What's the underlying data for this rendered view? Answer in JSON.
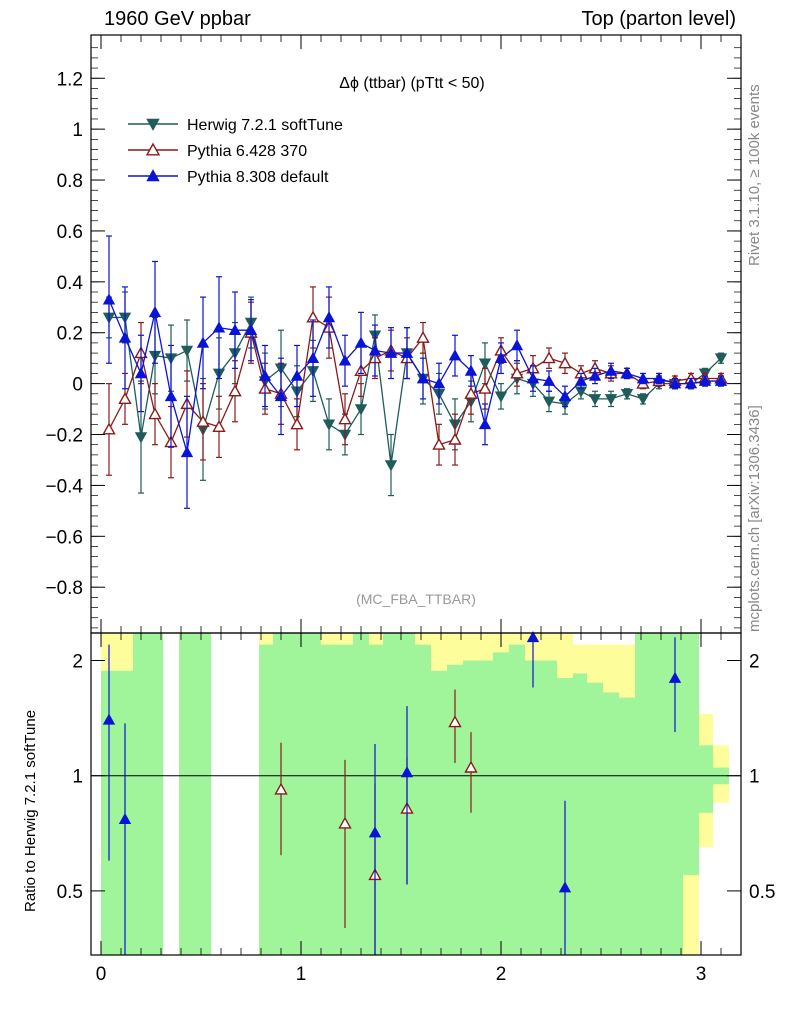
{
  "header": {
    "left": "1960 GeV ppbar",
    "right": "Top (parton level)"
  },
  "side_labels": {
    "rivet": "Rivet 3.1.10, ≥ 100k events",
    "mcplots": "mcplots.cern.ch [arXiv:1306.3436]"
  },
  "colors": {
    "herwig": "#1f5c5c",
    "pythia6": "#8b1a1a",
    "pythia8": "#0a14d6",
    "band_inner": "#a0f59a",
    "band_outer": "#fdfd9c"
  },
  "chart_data": [
    {
      "type": "line",
      "title": "Δϕ (ttbar) (pTtt < 50)",
      "footer": "(MC_FBA_TTBAR)",
      "xlim": [
        -0.05,
        3.2
      ],
      "ylim": [
        -0.98,
        1.37
      ],
      "x_ticks": [
        0,
        1,
        2,
        3
      ],
      "y_ticks": [
        -0.8,
        -0.6,
        -0.4,
        -0.2,
        0,
        0.2,
        0.4,
        0.6,
        0.8,
        1,
        1.2
      ],
      "y_tick_labels": [
        "−0.8",
        "−0.6",
        "−0.4",
        "−0.2",
        "0",
        "0.2",
        "0.4",
        "0.6",
        "0.8",
        "1",
        "1.2"
      ],
      "legend_position": "top-left",
      "series": [
        {
          "name": "Herwig 7.2.1 softTune",
          "marker": "triangle-down-filled",
          "color": "#1f5c5c",
          "x": [
            0.04,
            0.12,
            0.2,
            0.27,
            0.35,
            0.43,
            0.51,
            0.59,
            0.67,
            0.75,
            0.82,
            0.9,
            0.98,
            1.06,
            1.14,
            1.22,
            1.3,
            1.37,
            1.45,
            1.53,
            1.61,
            1.69,
            1.77,
            1.85,
            1.92,
            2.0,
            2.08,
            2.16,
            2.24,
            2.32,
            2.4,
            2.47,
            2.55,
            2.63,
            2.71,
            2.79,
            2.87,
            2.95,
            3.02,
            3.1
          ],
          "y": [
            0.26,
            0.26,
            -0.21,
            0.11,
            0.1,
            0.13,
            -0.18,
            0.04,
            0.12,
            0.24,
            0.01,
            0.06,
            -0.03,
            0.05,
            -0.16,
            -0.2,
            -0.1,
            0.19,
            -0.32,
            0.12,
            0.02,
            -0.04,
            -0.16,
            -0.07,
            0.08,
            -0.05,
            0.02,
            0.0,
            -0.07,
            -0.08,
            -0.03,
            -0.06,
            -0.06,
            -0.04,
            -0.06,
            0.0,
            0.0,
            0.0,
            0.04,
            0.1
          ],
          "err": [
            0.08,
            0.1,
            0.22,
            0.15,
            0.13,
            0.12,
            0.2,
            0.14,
            0.12,
            0.1,
            0.11,
            0.15,
            0.1,
            0.12,
            0.1,
            0.08,
            0.1,
            0.08,
            0.12,
            0.1,
            0.1,
            0.08,
            0.1,
            0.08,
            0.08,
            0.05,
            0.06,
            0.05,
            0.04,
            0.04,
            0.03,
            0.03,
            0.03,
            0.02,
            0.02,
            0.02,
            0.02,
            0.02,
            0.02,
            0.02
          ]
        },
        {
          "name": "Pythia 6.428 370",
          "marker": "triangle-up-open",
          "color": "#8b1a1a",
          "x": [
            0.04,
            0.12,
            0.2,
            0.27,
            0.35,
            0.43,
            0.51,
            0.59,
            0.67,
            0.75,
            0.82,
            0.9,
            0.98,
            1.06,
            1.14,
            1.22,
            1.3,
            1.37,
            1.45,
            1.53,
            1.61,
            1.69,
            1.77,
            1.85,
            1.92,
            2.0,
            2.08,
            2.16,
            2.24,
            2.32,
            2.4,
            2.47,
            2.55,
            2.63,
            2.71,
            2.79,
            2.87,
            2.95,
            3.02,
            3.1
          ],
          "y": [
            -0.18,
            -0.06,
            0.12,
            -0.12,
            -0.23,
            -0.08,
            -0.15,
            -0.17,
            -0.03,
            0.2,
            -0.02,
            -0.04,
            -0.16,
            0.26,
            0.22,
            -0.14,
            0.05,
            0.1,
            0.13,
            0.1,
            0.18,
            -0.24,
            -0.22,
            -0.04,
            -0.02,
            0.13,
            0.04,
            0.06,
            0.1,
            0.08,
            0.04,
            0.06,
            0.04,
            0.04,
            0.0,
            0.01,
            0.01,
            0.02,
            0.02,
            0.02
          ],
          "err": [
            0.18,
            0.1,
            0.12,
            0.12,
            0.14,
            0.13,
            0.15,
            0.12,
            0.12,
            0.12,
            0.1,
            0.12,
            0.1,
            0.12,
            0.12,
            0.1,
            0.1,
            0.08,
            0.08,
            0.08,
            0.06,
            0.08,
            0.1,
            0.08,
            0.08,
            0.05,
            0.05,
            0.05,
            0.04,
            0.04,
            0.03,
            0.03,
            0.03,
            0.02,
            0.02,
            0.02,
            0.02,
            0.02,
            0.02,
            0.02
          ]
        },
        {
          "name": "Pythia 8.308 default",
          "marker": "triangle-up-filled",
          "color": "#0a14d6",
          "x": [
            0.04,
            0.12,
            0.2,
            0.27,
            0.35,
            0.43,
            0.51,
            0.59,
            0.67,
            0.75,
            0.82,
            0.9,
            0.98,
            1.06,
            1.14,
            1.22,
            1.3,
            1.37,
            1.45,
            1.53,
            1.61,
            1.69,
            1.77,
            1.85,
            1.92,
            2.0,
            2.08,
            2.16,
            2.24,
            2.32,
            2.4,
            2.47,
            2.55,
            2.63,
            2.71,
            2.79,
            2.87,
            2.95,
            3.02,
            3.1
          ],
          "y": [
            0.33,
            0.18,
            0.04,
            0.28,
            -0.05,
            -0.27,
            0.16,
            0.22,
            0.21,
            0.21,
            0.03,
            -0.05,
            0.03,
            0.1,
            0.26,
            0.09,
            0.16,
            0.13,
            0.12,
            0.12,
            0.02,
            0.0,
            0.11,
            0.05,
            -0.16,
            0.1,
            0.15,
            0.02,
            0.01,
            -0.05,
            0.01,
            0.03,
            0.05,
            0.04,
            0.02,
            0.02,
            0.0,
            0.0,
            0.01,
            0.01
          ],
          "err": [
            0.25,
            0.2,
            0.15,
            0.2,
            0.2,
            0.22,
            0.18,
            0.2,
            0.15,
            0.12,
            0.12,
            0.15,
            0.12,
            0.15,
            0.12,
            0.1,
            0.12,
            0.1,
            0.1,
            0.1,
            0.08,
            0.08,
            0.08,
            0.06,
            0.08,
            0.06,
            0.06,
            0.05,
            0.04,
            0.04,
            0.03,
            0.03,
            0.03,
            0.02,
            0.02,
            0.02,
            0.02,
            0.02,
            0.02,
            0.02
          ]
        }
      ]
    },
    {
      "type": "line",
      "ylabel": "Ratio to Herwig 7.2.1 softTune",
      "xlim": [
        -0.05,
        3.2
      ],
      "ylim": [
        0.34,
        2.36
      ],
      "x_ticks": [
        0,
        1,
        2,
        3
      ],
      "y_ticks": [
        0.5,
        1,
        2
      ],
      "y_tick_labels": [
        "0.5",
        "1",
        "2"
      ],
      "reference_line": 1,
      "band": {
        "x_edges": [
          0.0,
          0.08,
          0.16,
          0.24,
          0.31,
          0.39,
          0.47,
          0.55,
          0.63,
          0.71,
          0.79,
          0.86,
          0.94,
          1.02,
          1.1,
          1.18,
          1.26,
          1.34,
          1.41,
          1.49,
          1.57,
          1.65,
          1.73,
          1.81,
          1.88,
          1.96,
          2.04,
          2.12,
          2.2,
          2.28,
          2.36,
          2.43,
          2.51,
          2.59,
          2.67,
          2.75,
          2.83,
          2.91,
          2.99,
          3.06,
          3.14
        ],
        "inner": [
          [
            0.34,
            1.88
          ],
          [
            0.34,
            1.88
          ],
          [
            0.34,
            2.36
          ],
          [
            0.34,
            2.36
          ],
          [
            1.0,
            1.0
          ],
          [
            0.34,
            2.36
          ],
          [
            0.34,
            2.36
          ],
          [
            1.0,
            1.0
          ],
          [
            1.0,
            1.0
          ],
          [
            1.0,
            1.0
          ],
          [
            0.34,
            2.2
          ],
          [
            0.34,
            2.36
          ],
          [
            0.34,
            2.36
          ],
          [
            0.34,
            2.36
          ],
          [
            0.34,
            2.2
          ],
          [
            0.34,
            2.2
          ],
          [
            0.34,
            2.36
          ],
          [
            0.34,
            2.2
          ],
          [
            0.34,
            2.36
          ],
          [
            0.34,
            2.36
          ],
          [
            0.34,
            2.2
          ],
          [
            0.34,
            1.88
          ],
          [
            0.34,
            1.95
          ],
          [
            0.34,
            2.0
          ],
          [
            0.34,
            2.0
          ],
          [
            0.34,
            2.1
          ],
          [
            0.34,
            2.2
          ],
          [
            0.34,
            2.0
          ],
          [
            0.34,
            2.0
          ],
          [
            0.34,
            1.8
          ],
          [
            0.34,
            1.85
          ],
          [
            0.34,
            1.75
          ],
          [
            0.34,
            1.65
          ],
          [
            0.34,
            1.6
          ],
          [
            0.34,
            2.36
          ],
          [
            0.34,
            2.36
          ],
          [
            0.34,
            2.36
          ],
          [
            0.55,
            2.36
          ],
          [
            0.8,
            1.2
          ],
          [
            0.95,
            1.05
          ]
        ],
        "outer": [
          [
            0.34,
            2.36
          ],
          [
            0.34,
            2.36
          ],
          [
            0.34,
            2.36
          ],
          [
            0.34,
            2.36
          ],
          [
            1.0,
            1.0
          ],
          [
            0.34,
            2.36
          ],
          [
            0.34,
            2.36
          ],
          [
            1.0,
            1.0
          ],
          [
            1.0,
            1.0
          ],
          [
            1.0,
            1.0
          ],
          [
            0.34,
            2.36
          ],
          [
            0.34,
            2.36
          ],
          [
            0.34,
            2.36
          ],
          [
            0.34,
            2.36
          ],
          [
            0.34,
            2.36
          ],
          [
            0.34,
            2.36
          ],
          [
            0.34,
            2.36
          ],
          [
            0.34,
            2.36
          ],
          [
            0.34,
            2.36
          ],
          [
            0.34,
            2.36
          ],
          [
            0.34,
            2.36
          ],
          [
            0.34,
            2.36
          ],
          [
            0.34,
            2.36
          ],
          [
            0.34,
            2.36
          ],
          [
            0.34,
            2.36
          ],
          [
            0.34,
            2.36
          ],
          [
            0.34,
            2.36
          ],
          [
            0.34,
            2.36
          ],
          [
            0.34,
            2.36
          ],
          [
            0.34,
            2.36
          ],
          [
            0.34,
            2.2
          ],
          [
            0.34,
            2.2
          ],
          [
            0.34,
            2.2
          ],
          [
            0.34,
            2.2
          ],
          [
            0.34,
            2.36
          ],
          [
            0.34,
            2.36
          ],
          [
            0.34,
            2.36
          ],
          [
            0.34,
            2.36
          ],
          [
            0.65,
            1.45
          ],
          [
            0.85,
            1.2
          ]
        ]
      },
      "series": [
        {
          "name": "Pythia 6.428 370",
          "color": "#8b1a1a",
          "marker": "triangle-up-open",
          "x": [
            0.9,
            1.22,
            1.37,
            1.53,
            1.77,
            1.85
          ],
          "y": [
            0.92,
            0.75,
            0.55,
            0.82,
            1.38,
            1.05
          ],
          "err": [
            0.3,
            0.35,
            0.4,
            0.3,
            0.3,
            0.25
          ]
        },
        {
          "name": "Pythia 8.308 default",
          "color": "#0a14d6",
          "marker": "triangle-up-filled",
          "x": [
            0.04,
            0.12,
            1.37,
            1.53,
            2.16,
            2.32,
            2.87
          ],
          "y": [
            1.4,
            0.77,
            0.71,
            1.02,
            2.3,
            0.51,
            1.8
          ],
          "err": [
            0.8,
            0.6,
            0.5,
            0.5,
            0.6,
            0.35,
            0.5
          ]
        }
      ]
    }
  ]
}
